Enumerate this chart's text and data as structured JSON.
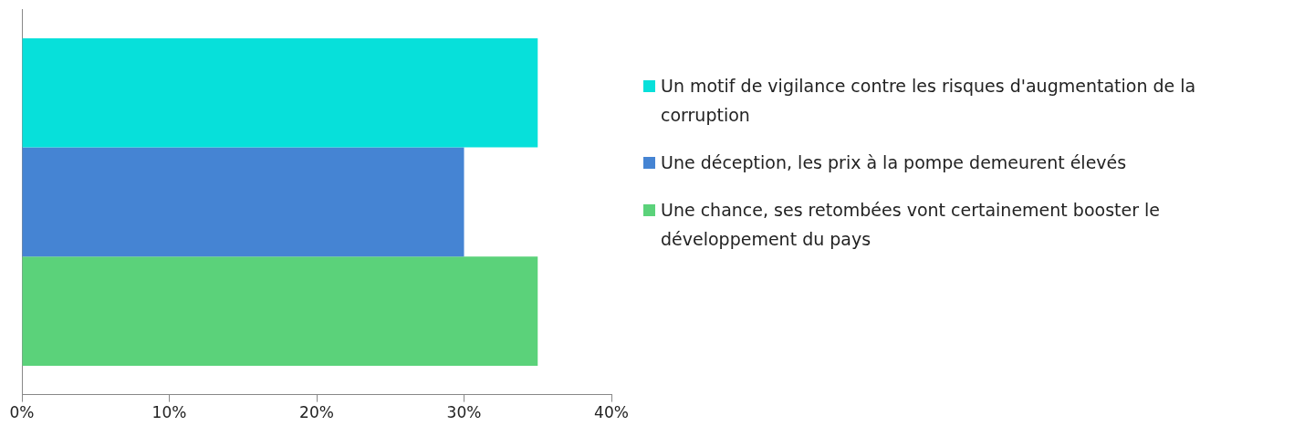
{
  "chart_data": {
    "type": "bar",
    "orientation": "horizontal",
    "categories": [
      null
    ],
    "series": [
      {
        "name": "Un motif de vigilance contre les risques d'augmentation de la corruption",
        "color": "#07e0da",
        "values": [
          35
        ]
      },
      {
        "name": "Une déception, les prix à la pompe demeurent élevés",
        "color": "#4584d3",
        "values": [
          30
        ]
      },
      {
        "name": "Une chance, ses retombées vont certainement booster le développement du pays",
        "color": "#5bd27a",
        "values": [
          35
        ]
      }
    ],
    "xlim": [
      0,
      40
    ],
    "xticks": [
      {
        "value": 0,
        "label": "0%"
      },
      {
        "value": 10,
        "label": "10%"
      },
      {
        "value": 20,
        "label": "20%"
      },
      {
        "value": 30,
        "label": "30%"
      },
      {
        "value": 40,
        "label": "40%"
      }
    ],
    "grid": false,
    "legend": "right"
  }
}
